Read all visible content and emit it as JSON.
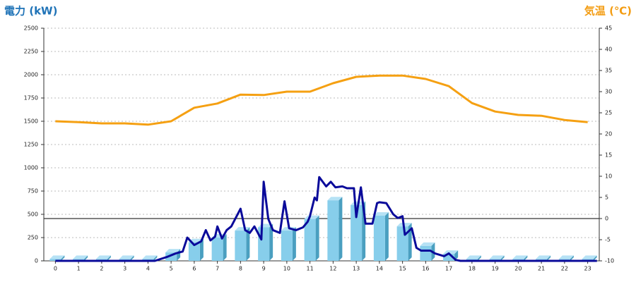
{
  "chart_data": {
    "type": "combo",
    "y_label": "電力 (kW)",
    "y2_label": "気温 (℃)",
    "categories": [
      "0",
      "1",
      "2",
      "3",
      "4",
      "5",
      "6",
      "7",
      "8",
      "9",
      "10",
      "11",
      "12",
      "13",
      "14",
      "15",
      "16",
      "17",
      "18",
      "19",
      "20",
      "21",
      "22",
      "23"
    ],
    "ylim": [
      0,
      2500
    ],
    "yticks": [
      0,
      250,
      500,
      750,
      1000,
      1250,
      1500,
      1750,
      2000,
      2250,
      2500
    ],
    "y2lim": [
      -10,
      45
    ],
    "y2ticks": [
      -10,
      -5,
      0,
      5,
      10,
      15,
      20,
      25,
      30,
      35,
      40,
      45
    ],
    "grid": true,
    "zero_line": true,
    "series": [
      {
        "type": "bar",
        "color": "#87ceeb",
        "values": [
          20,
          20,
          20,
          20,
          20,
          90,
          200,
          250,
          325,
          360,
          325,
          450,
          650,
          600,
          485,
          370,
          160,
          75,
          20,
          20,
          20,
          20,
          20,
          20
        ]
      },
      {
        "type": "line",
        "color": "#0a0a9a",
        "x": [
          0,
          4.3,
          4.8,
          5.2,
          5.5,
          5.7,
          6.0,
          6.3,
          6.5,
          6.7,
          6.9,
          7.0,
          7.2,
          7.4,
          7.6,
          8.0,
          8.2,
          8.4,
          8.6,
          8.9,
          9.0,
          9.2,
          9.4,
          9.7,
          9.9,
          10.1,
          10.4,
          10.7,
          10.9,
          11.0,
          11.2,
          11.3,
          11.4,
          11.7,
          11.9,
          12.1,
          12.4,
          12.6,
          12.9,
          13.0,
          13.2,
          13.4,
          13.7,
          13.9,
          14.0,
          14.3,
          14.6,
          14.8,
          15.0,
          15.1,
          15.4,
          15.6,
          15.8,
          16.2,
          16.4,
          16.8,
          17.0,
          17.3,
          17.5,
          23.4
        ],
        "values": [
          0,
          0,
          40,
          80,
          100,
          250,
          170,
          210,
          330,
          220,
          260,
          370,
          240,
          330,
          370,
          560,
          330,
          300,
          370,
          230,
          850,
          450,
          330,
          300,
          640,
          350,
          330,
          360,
          420,
          480,
          680,
          650,
          900,
          800,
          850,
          790,
          800,
          780,
          780,
          470,
          790,
          400,
          400,
          620,
          630,
          620,
          500,
          460,
          480,
          280,
          350,
          140,
          110,
          110,
          80,
          50,
          80,
          10,
          0,
          0
        ]
      },
      {
        "type": "line",
        "axis": "y2",
        "color": "#f5a012",
        "values": [
          23,
          22.8,
          22.5,
          22.5,
          22.2,
          23,
          26.2,
          27.2,
          29.3,
          29.2,
          30,
          30,
          32,
          33.5,
          33.8,
          33.8,
          33,
          31.3,
          27.3,
          25.3,
          24.5,
          24.3,
          23.3,
          22.8
        ]
      }
    ]
  }
}
